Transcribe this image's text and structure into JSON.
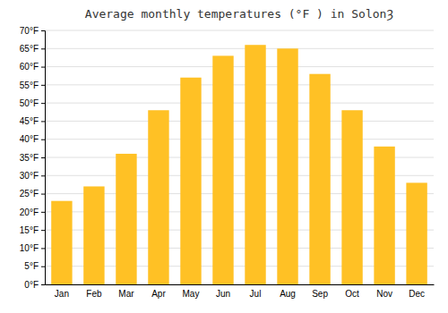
{
  "chart_data": {
    "type": "bar",
    "title": "Average monthly temperatures (°F ) in SolonȜ",
    "categories": [
      "Jan",
      "Feb",
      "Mar",
      "Apr",
      "May",
      "Jun",
      "Jul",
      "Aug",
      "Sep",
      "Oct",
      "Nov",
      "Dec"
    ],
    "values": [
      23,
      27,
      36,
      48,
      57,
      63,
      66,
      65,
      58,
      48,
      38,
      28
    ],
    "color": "#FFC125",
    "ylim": [
      0,
      70
    ],
    "yticks": [
      {
        "value": 0,
        "label": "0°F"
      },
      {
        "value": 5,
        "label": "5°F"
      },
      {
        "value": 10,
        "label": "10°F"
      },
      {
        "value": 15,
        "label": "15°F"
      },
      {
        "value": 20,
        "label": "20°F"
      },
      {
        "value": 25,
        "label": "25°F"
      },
      {
        "value": 30,
        "label": "30°F"
      },
      {
        "value": 35,
        "label": "35°F"
      },
      {
        "value": 40,
        "label": "40°F"
      },
      {
        "value": 45,
        "label": "45°F"
      },
      {
        "value": 50,
        "label": "50°F"
      },
      {
        "value": 55,
        "label": "55°F"
      },
      {
        "value": 60,
        "label": "60°F"
      },
      {
        "value": 65,
        "label": "65°F"
      },
      {
        "value": 70,
        "label": "70°F"
      }
    ],
    "grid": true
  }
}
